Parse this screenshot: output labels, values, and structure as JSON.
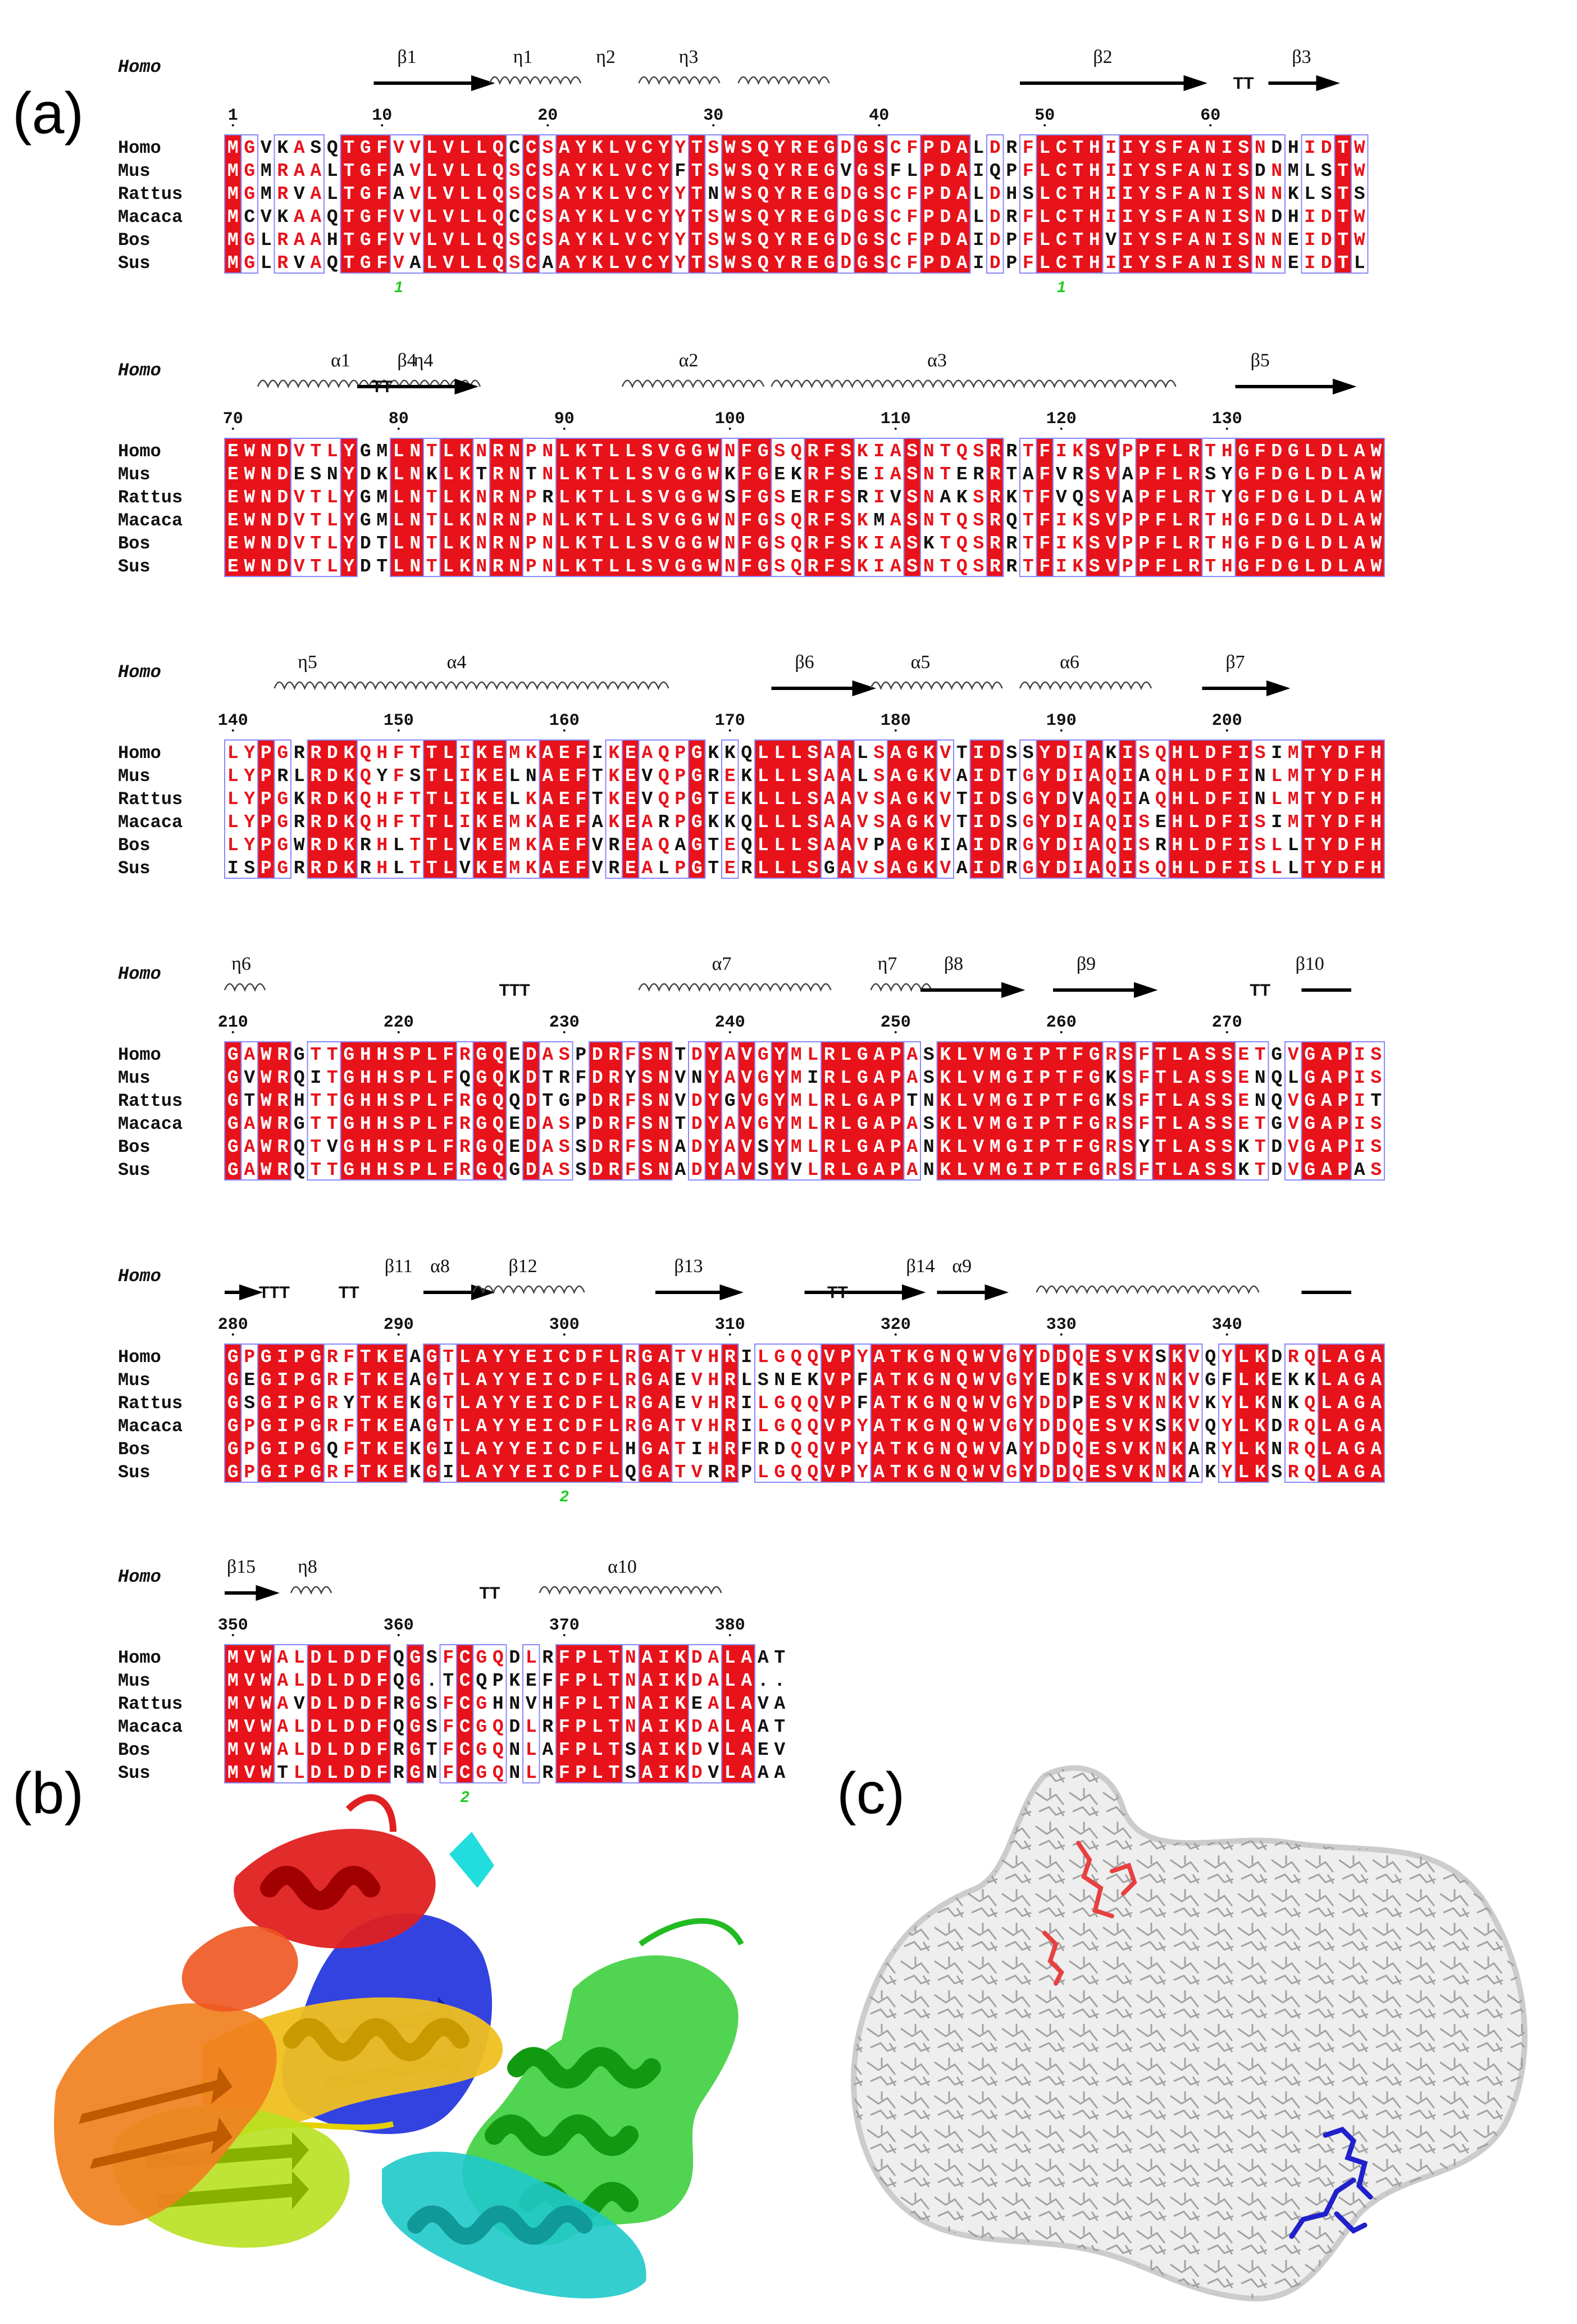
{
  "figure": {
    "labels": {
      "a": "(a)",
      "b": "(b)",
      "c": "(c)"
    },
    "reference_label": "Homo",
    "species": [
      "Homo",
      "Mus",
      "Rattus",
      "Macaca",
      "Bos",
      "Sus"
    ]
  },
  "colors": {
    "identical_bg": "#e8121a",
    "identical_fg": "#ffffff",
    "similar_fg": "#e8121a",
    "box_border": "#8888ff",
    "text": "#111111",
    "cys_label": "#22cc22"
  },
  "blocks": [
    {
      "start": 1,
      "numbers": [
        "1",
        "10",
        "20",
        "30",
        "40",
        "50",
        "60"
      ],
      "sse_labels": [
        "β1",
        "η1",
        "η2",
        "η3",
        "β2",
        "TT",
        "β3"
      ],
      "cys_labels": [
        "1",
        "1"
      ],
      "sequences": [
        "MGVKASQTGFVVLVLLQCCSAYKLVCYYTSWSQYREGDGSCFPDALDRFLCTHIIYSFANISNDHIDTW",
        "MGMRAALTGFAVLVLLQSCSAYKLVCYFTSWSQYREGVGSFLPDAIQPFLCTHIIYSFANISDNMLSTW",
        "MGMRVALTGFAVLVLLQSCSAYKLVCYYTNWSQYREGDGSCFPDALDHSLCTHIIYSFANISNNKLSTS",
        "MCVKAAQTGFVVLVLLQCCSAYKLVCYYTSWSQYREGDGSCFPDALDRFLCTHIIYSFANISNDHIDTW",
        "MGLRAAHTGFVVLVLLQSCSAYKLVCYYTSWSQYREGDGSCFPDAIDPFLCTHVIYSFANISNNEIDTW",
        "MGLRVAQTGFVALVLLQSCAAYKLVCYYTSWSQYREGDGSCFPDAIDPFLCTHIIYSFANISNNEIDTL"
      ]
    },
    {
      "start": 70,
      "numbers": [
        "70",
        "80",
        "90",
        "100",
        "110",
        "120",
        "130"
      ],
      "sse_labels": [
        "α1",
        "η4",
        "TT",
        "β4",
        "α2",
        "α3",
        "β5"
      ],
      "cys_labels": [],
      "sequences": [
        "EWNDVTLYGMLNTLKNRNPNLKTLLSVGGWNFGSQRFSKIASNTQSRRTFIKSVPPFLRTHGFDGLDLAW",
        "EWNDESNYDKLNKLKTRNTNLKTLLSVGGWKFGEKRFSEIASNTERRTAFVRSVAPFLRSYGFDGLDLAW",
        "EWNDVTLYGMLNTLKNRNPRLKTLLSVGGWSFGSERFSRIVSNAKSRKTFVQSVAPFLRTYGFDGLDLAW",
        "EWNDVTLYGMLNTLKNRNPNLKTLLSVGGWNFGSQRFSKMASNTQSRQTFIKSVPPFLRTHGFDGLDLAW",
        "EWNDVTLYDTLNTLKNRNPNLKTLLSVGGWNFGSQRFSKIASKTQSRRTFIKSVPPFLRTHGFDGLDLAW",
        "EWNDVTLYDTLNTLKNRNPNLKTLLSVGGWNFGSQRFSKIASNTQSRRTFIKSVPPFLRTHGFDGLDLAW"
      ]
    },
    {
      "start": 140,
      "numbers": [
        "140",
        "150",
        "160",
        "170",
        "180",
        "190",
        "200"
      ],
      "sse_labels": [
        "η5",
        "α4",
        "β6",
        "α5",
        "α6",
        "β7"
      ],
      "cys_labels": [],
      "sequences": [
        "LYPGRRDKQHFTTLIKEMKAEFIKEAQPGKKQLLLSAALSAGKVTIDSSYDIAKISQHLDFISIMTYDFH",
        "LYPRLRDKQYFSTLIKELNAEFTKEVQPGREKLLLSAALSAGKVAIDTGYDIAQIAQHLDFINLMTYDFH",
        "LYPGKRDKQHFTTLIKELKAEFTKEVQPGTEKLLLSAAVSAGKVTIDSGYDVAQIAQHLDFINLMTYDFH",
        "LYPGRRDKQHFTTLIKEMKAEFAKEARPGKKQLLLSAAVSAGKVTIDSGYDIAQISEHLDFISIMTYDFH",
        "LYPGWRDKRHLTTLVKEMKAEFVREAQAGTEQLLLSAAVPAGKIAIDRGYDIAQISRHLDFISLLTYDFH",
        "ISPGRRDKRHLTTLVKEMKAEFVREALPGTERLLLSGAVSAGKVAIDRGYDIAQISQHLDFISLLTYDFH"
      ]
    },
    {
      "start": 210,
      "numbers": [
        "210",
        "220",
        "230",
        "240",
        "250",
        "260",
        "270"
      ],
      "sse_labels": [
        "η6",
        "TTT",
        "α7",
        "η7",
        "β8",
        "β9",
        "TT",
        "β10"
      ],
      "cys_labels": [],
      "sequences": [
        "GAWRGTTGHHSPLFRGQEDASPDRFSNTDYAVGYMLRLGAPASKLVMGIPTFGRSFTLASSETGVGAPIS",
        "GVWRQITGHHSPLFQGQKDTRFDRYSNVNYAVGYMIRLGAPASKLVMGIPTFGKSFTLASSENQLGAPIS",
        "GTWRHTTGHHSPLFRGQQDTGPDRFSNVDYGVGYMLRLGAPTNKLVMGIPTFGKSFTLASSENQVGAPIT",
        "GAWRGTTGHHSPLFRGQEDASPDRFSNTDYAVGYMLRLGAPASKLVMGIPTFGRSFTLASSETGVGAPIS",
        "GAWRQTVGHHSPLFRGQEDASSDRFSNADYAVSYMLRLGAPANKLVMGIPTFGRSYTLASSKTDVGAPIS",
        "GAWRQTTGHHSPLFRGQGDASSDRFSNADYAVSYVLRLGAPANKLVMGIPTFGRSFTLASSKTDVGAPAS"
      ]
    },
    {
      "start": 280,
      "numbers": [
        "280",
        "290",
        "300",
        "310",
        "320",
        "330",
        "340"
      ],
      "sse_labels": [
        "TTT",
        "TT",
        "β11",
        "α8",
        "β12",
        "β13",
        "TT",
        "β14",
        "α9"
      ],
      "cys_labels": [
        "2"
      ],
      "sequences": [
        "GPGIPGRFTKEAGTLAYYEICDFLRGATVHRILGQQVPYATKGNQWVGYDDQESVKSKVQYLKDRQLAGA",
        "GEGIPGRFTKEAGTLAYYEICDFLRGAEVHRLSNEKVPFATKGNQWVGYEDKESVKNKVGFLKEKKLAGA",
        "GSGIPGRYTKEKGTLAYYEICDFLRGAEVHRILGQQVPFATKGNQWVGYDDPESVKNKVKYLKNKQLAGA",
        "GPGIPGRFTKEAGTLAYYEICDFLRGATVHRILGQQVPYATKGNQWVGYDDQESVKSKVQYLKDRQLAGA",
        "GPGIPGQFTKEKGILAYYEICDFLHGATIHRFRDQQVPYATKGNQWVAYDDQESVKNKARYLKNRQLAGA",
        "GPGIPGRFTKEKGILAYYEICDFLQGATVRRPLGQQVPYATKGNQWVGYDDQESVKNKAKYLKSRQLAGA"
      ]
    },
    {
      "start": 350,
      "numbers": [
        "350",
        "360",
        "370",
        "380"
      ],
      "sse_labels": [
        "β15",
        "η8",
        "TT",
        "α10"
      ],
      "cys_labels": [
        "2"
      ],
      "sequences": [
        "MVWALDLDDFQGSFCGQDLRFPLTNAIKDALAAT",
        "MVWALDLDDFQG.TCQPKEFFPLTNAIKDALA..",
        "MVWAVDLDDFRGSFCGHNVHFPLTNAIKEALAVA",
        "MVWALDLDDFQGSFCGQDLRFPLTNAIKDALAAT",
        "MVWALDLDDFRGTFCGQNLAFPLTSAIKDVLAEV",
        "MVWTLDLDDFRGNFCGQNLRFPLTSAIKDVLAAA"
      ]
    }
  ]
}
